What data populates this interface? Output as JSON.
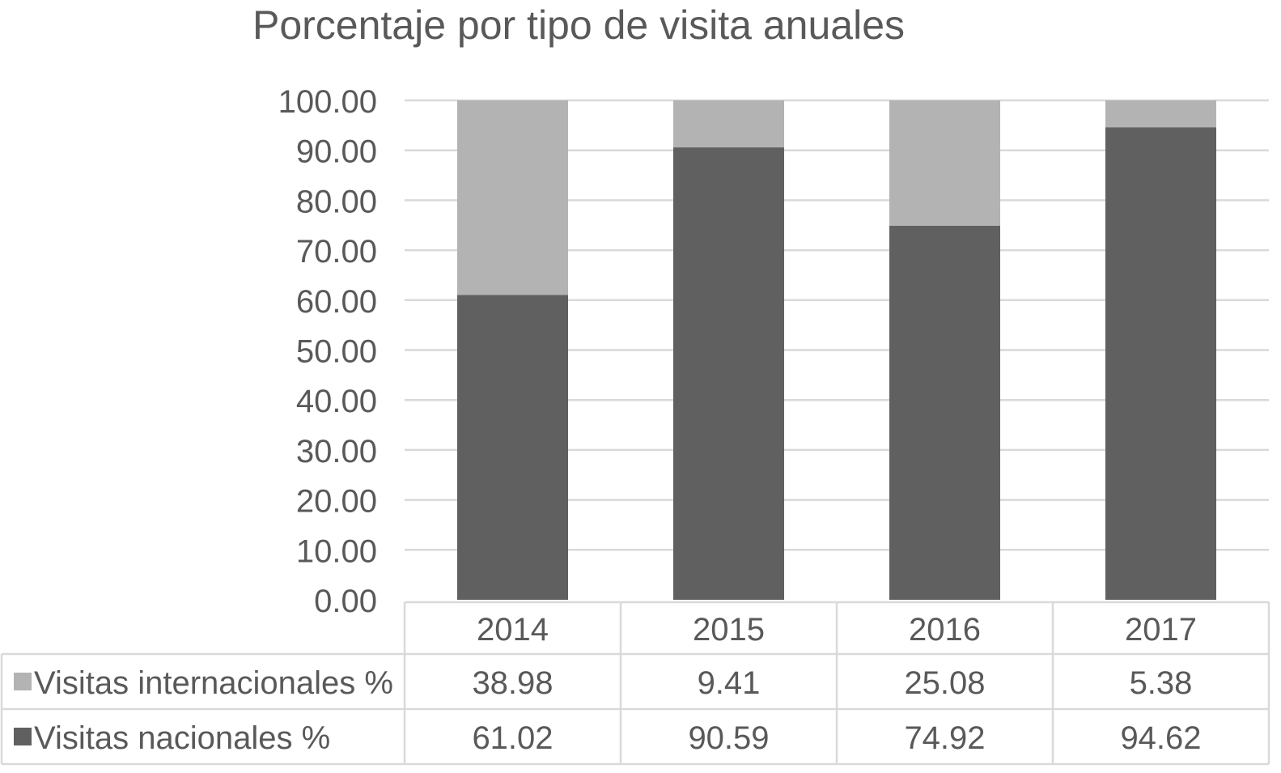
{
  "chart_data": {
    "type": "bar",
    "stacked": true,
    "title": "Porcentaje por tipo de visita anuales",
    "xlabel": "",
    "ylabel": "",
    "categories": [
      "2014",
      "2015",
      "2016",
      "2017"
    ],
    "ylim": [
      0,
      100
    ],
    "yticks": [
      "0.00",
      "10.00",
      "20.00",
      "30.00",
      "40.00",
      "50.00",
      "60.00",
      "70.00",
      "80.00",
      "90.00",
      "100.00"
    ],
    "grid": true,
    "legend": "data-table",
    "series": [
      {
        "name": "Visitas nacionales %",
        "color": "#606060",
        "values": [
          61.02,
          90.59,
          74.92,
          94.62
        ],
        "labels": [
          "61.02",
          "90.59",
          "74.92",
          "94.62"
        ]
      },
      {
        "name": "Visitas internacionales %",
        "color": "#b3b3b3",
        "values": [
          38.98,
          9.41,
          25.08,
          5.38
        ],
        "labels": [
          "38.98",
          "9.41",
          "25.08",
          "5.38"
        ]
      }
    ],
    "table_order": [
      1,
      0
    ]
  }
}
